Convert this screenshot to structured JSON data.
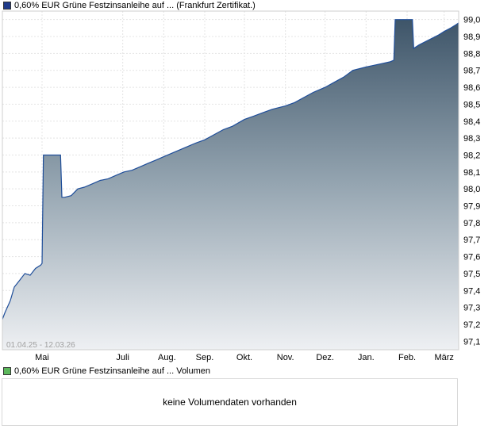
{
  "price_legend": {
    "label": "0,60% EUR Grüne Festzinsanleihe auf ... (Frankfurt Zertifikat.)",
    "color": "#1f3a8a"
  },
  "volume_legend": {
    "label": "0,60% EUR Grüne Festzinsanleihe auf ... Volumen",
    "color": "#5cb85c"
  },
  "volume_message": "keine Volumendaten vorhanden",
  "chart_data": {
    "type": "area",
    "date_range_label": "01.04.25 - 12.03.26",
    "x_ticks": [
      "Mai",
      "Juli",
      "Aug.",
      "Sep.",
      "Okt.",
      "Nov.",
      "Dez.",
      "Jan.",
      "Feb.",
      "März"
    ],
    "y_ticks": [
      "97,1",
      "97,2",
      "97,3",
      "97,4",
      "97,5",
      "97,6",
      "97,7",
      "97,8",
      "97,9",
      "98,0",
      "98,1",
      "98,2",
      "98,3",
      "98,4",
      "98,5",
      "98,6",
      "98,7",
      "98,8",
      "98,9",
      "99,0"
    ],
    "ylim": [
      97.05,
      99.05
    ],
    "x_range": [
      "2025-04-01",
      "2026-03-12"
    ],
    "grid": true,
    "series": [
      {
        "x": [
          "2025-04-01",
          "2025-04-03",
          "2025-04-07",
          "2025-04-10",
          "2025-04-14",
          "2025-04-18",
          "2025-04-22",
          "2025-04-26",
          "2025-04-30",
          "2025-05-01",
          "2025-05-02",
          "2025-05-07",
          "2025-05-14",
          "2025-05-15",
          "2025-05-16",
          "2025-05-18",
          "2025-05-23",
          "2025-05-28",
          "2025-06-02",
          "2025-06-08",
          "2025-06-14",
          "2025-06-20",
          "2025-06-26",
          "2025-07-02",
          "2025-07-08",
          "2025-07-14",
          "2025-07-20",
          "2025-07-26",
          "2025-08-01",
          "2025-08-07",
          "2025-08-13",
          "2025-08-19",
          "2025-08-25",
          "2025-09-01",
          "2025-09-08",
          "2025-09-15",
          "2025-09-22",
          "2025-10-01",
          "2025-10-08",
          "2025-10-15",
          "2025-10-22",
          "2025-11-01",
          "2025-11-08",
          "2025-11-15",
          "2025-11-22",
          "2025-12-01",
          "2025-12-08",
          "2025-12-15",
          "2025-12-22",
          "2026-01-01",
          "2026-01-07",
          "2026-01-13",
          "2026-01-19",
          "2026-01-22",
          "2026-01-23",
          "2026-01-27",
          "2026-02-01",
          "2026-02-05",
          "2026-02-06",
          "2026-02-10",
          "2026-02-15",
          "2026-02-20",
          "2026-02-25",
          "2026-03-01",
          "2026-03-06",
          "2026-03-10",
          "2026-03-12"
        ],
        "values": [
          97.23,
          97.27,
          97.34,
          97.42,
          97.46,
          97.5,
          97.49,
          97.53,
          97.55,
          97.56,
          98.2,
          98.2,
          98.2,
          98.2,
          97.95,
          97.95,
          97.96,
          98.0,
          98.01,
          98.03,
          98.05,
          98.06,
          98.08,
          98.1,
          98.11,
          98.13,
          98.15,
          98.17,
          98.19,
          98.21,
          98.23,
          98.25,
          98.27,
          98.29,
          98.32,
          98.35,
          98.37,
          98.41,
          98.43,
          98.45,
          98.47,
          98.49,
          98.51,
          98.54,
          98.57,
          98.6,
          98.63,
          98.66,
          98.7,
          98.72,
          98.73,
          98.74,
          98.75,
          98.76,
          99.0,
          99.0,
          99.0,
          99.0,
          98.83,
          98.85,
          98.87,
          98.89,
          98.91,
          98.93,
          98.95,
          98.97,
          98.98
        ]
      }
    ]
  }
}
